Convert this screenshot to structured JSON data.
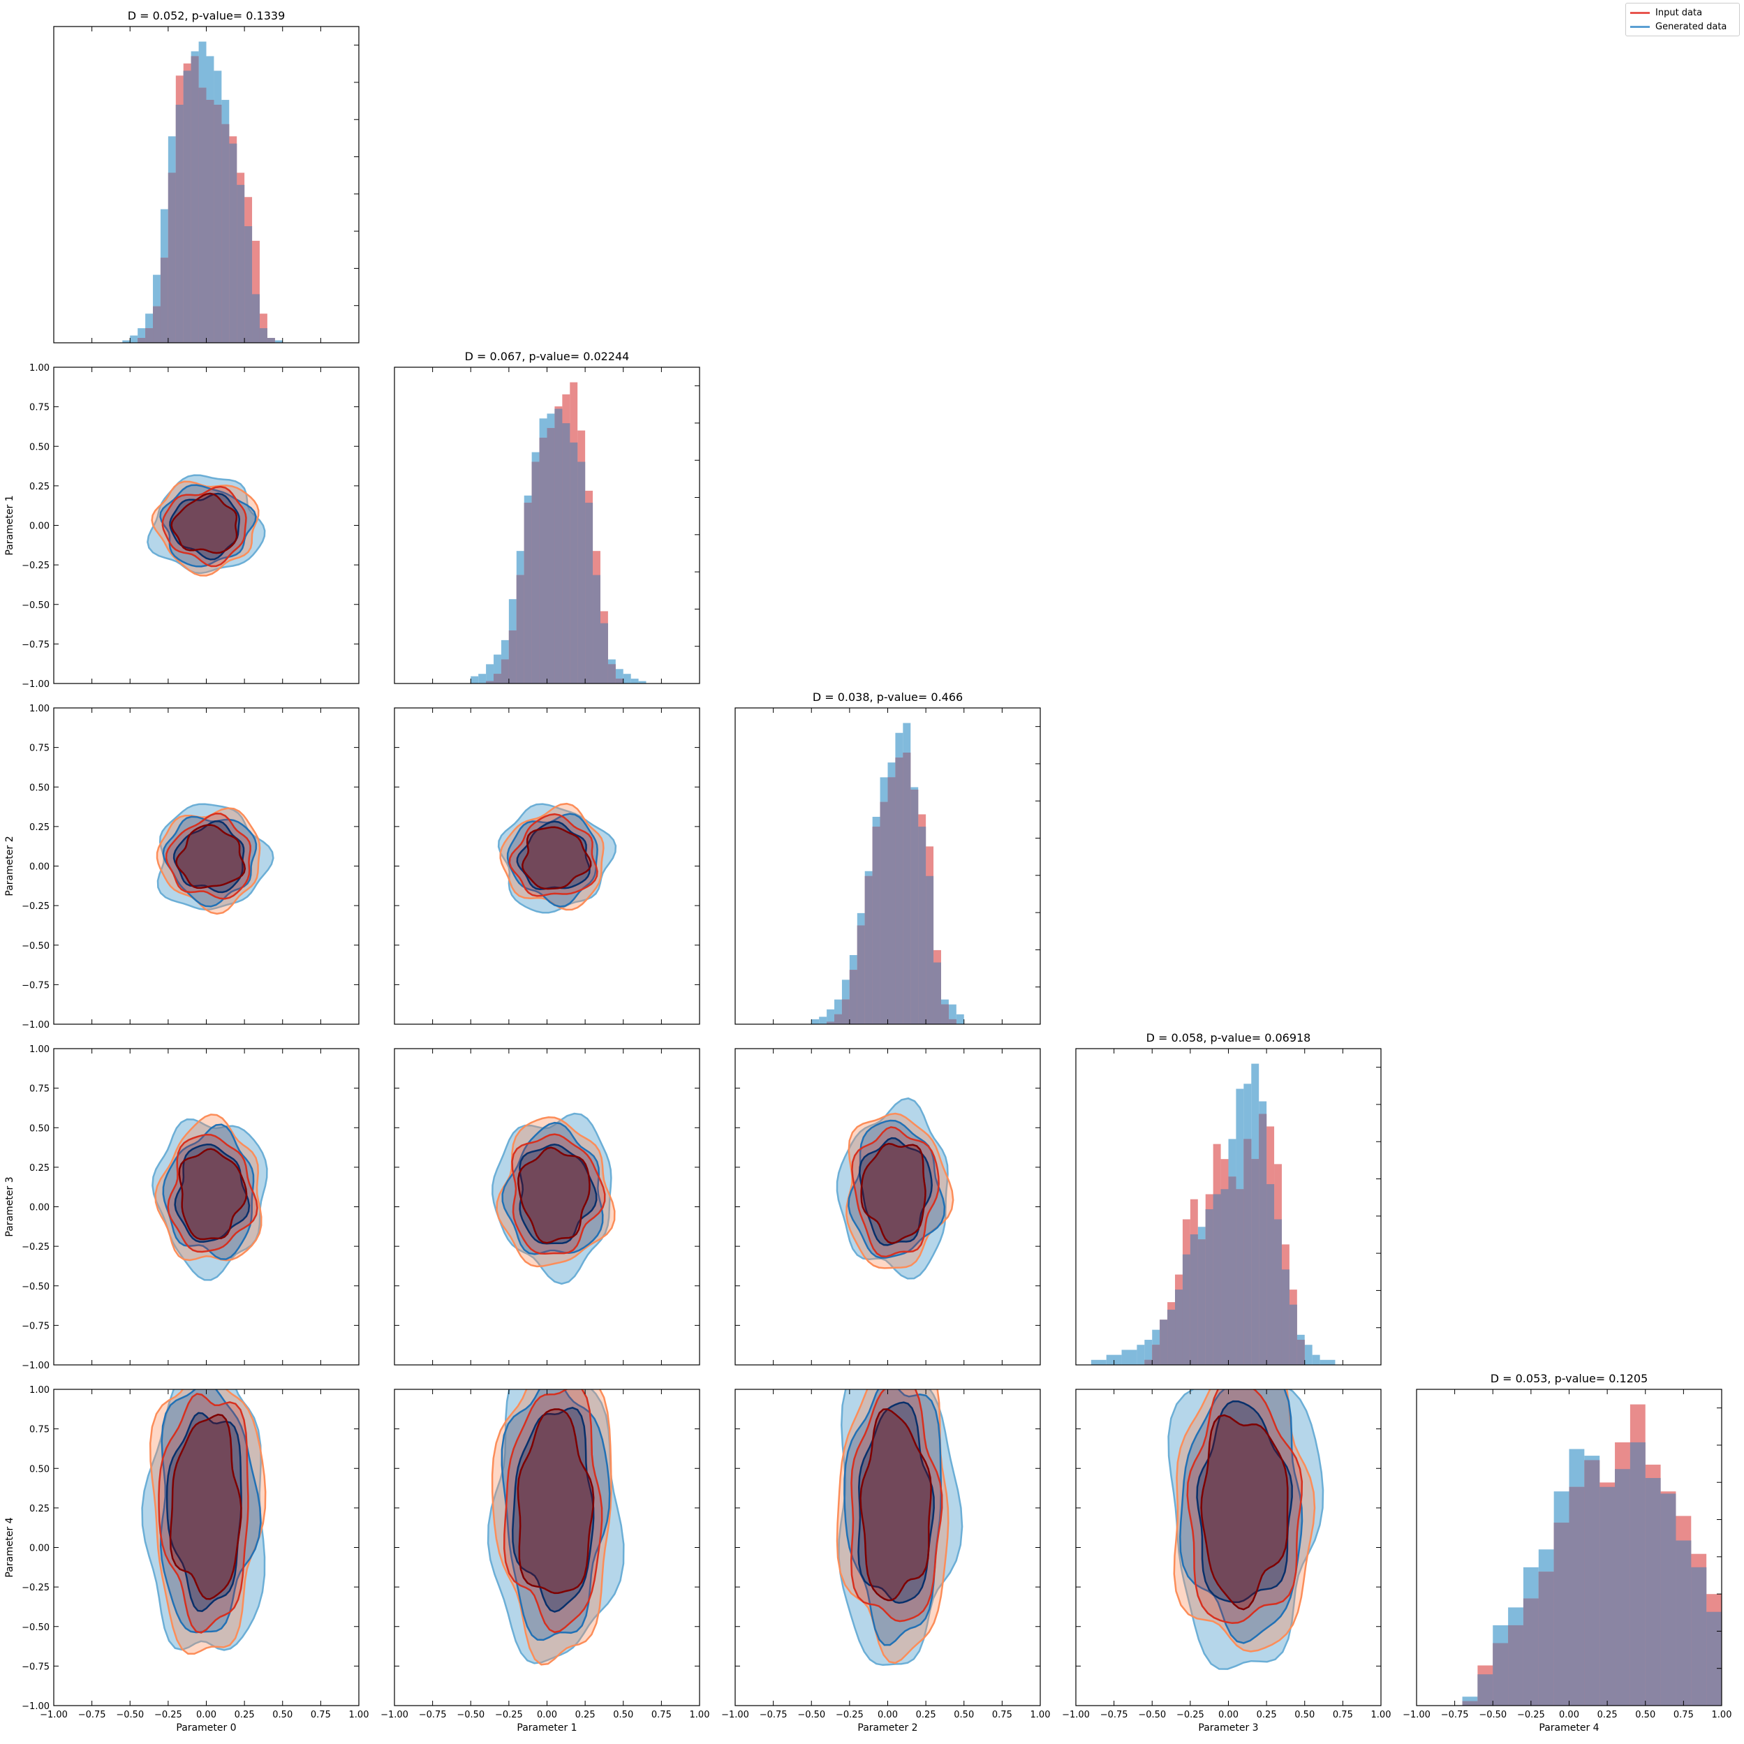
{
  "chart_data": {
    "type": "corner",
    "parameters": [
      "Parameter 0",
      "Parameter 1",
      "Parameter 2",
      "Parameter 3",
      "Parameter 4"
    ],
    "xlim": [
      -1.0,
      1.0
    ],
    "ylim": [
      -1.0,
      1.0
    ],
    "tick_labels": [
      "−1.00",
      "−0.75",
      "−0.50",
      "−0.25",
      "0.00",
      "0.25",
      "0.50",
      "0.75",
      "1.00"
    ],
    "legend": {
      "placement": "top-right",
      "entries": [
        {
          "label": "Input data",
          "color": "#e8554e"
        },
        {
          "label": "Generated data",
          "color": "#5b9fd3"
        }
      ]
    },
    "colors": {
      "input_hist": "#e06666",
      "generated_hist": "#6baed6",
      "overlap": "#8a85a3",
      "input_contour": [
        "#fc8d59",
        "#d7301f",
        "#7f0000"
      ],
      "generated_contour": [
        "#6baed6",
        "#2171b5",
        "#08306b"
      ]
    },
    "diagonal": [
      {
        "param": 0,
        "title": "D = 0.052, p-value= 0.1339",
        "bin_edges": [
          -0.55,
          -0.5,
          -0.45,
          -0.4,
          -0.35,
          -0.3,
          -0.25,
          -0.2,
          -0.15,
          -0.1,
          -0.05,
          0.0,
          0.05,
          0.1,
          0.15,
          0.2,
          0.25,
          0.3,
          0.35,
          0.4,
          0.45,
          0.5
        ],
        "input_counts": [
          0,
          0,
          2,
          6,
          15,
          35,
          70,
          110,
          115,
          118,
          105,
          100,
          98,
          90,
          85,
          70,
          60,
          42,
          12,
          2,
          0
        ],
        "generated_counts": [
          1,
          3,
          6,
          12,
          28,
          55,
          85,
          98,
          112,
          120,
          124,
          118,
          112,
          100,
          82,
          65,
          48,
          20,
          6,
          2,
          1
        ]
      },
      {
        "param": 1,
        "title": "D = 0.067, p-value= 0.02244",
        "bin_edges": [
          -0.5,
          -0.45,
          -0.4,
          -0.35,
          -0.3,
          -0.25,
          -0.2,
          -0.15,
          -0.1,
          -0.05,
          0.0,
          0.05,
          0.1,
          0.15,
          0.2,
          0.25,
          0.3,
          0.35,
          0.4,
          0.45,
          0.5,
          0.55,
          0.6,
          0.65
        ],
        "input_counts": [
          0,
          0,
          1,
          4,
          10,
          22,
          45,
          75,
          92,
          102,
          106,
          115,
          120,
          125,
          105,
          80,
          55,
          30,
          8,
          2,
          0,
          0,
          0
        ],
        "generated_counts": [
          3,
          4,
          8,
          12,
          18,
          35,
          55,
          78,
          96,
          110,
          112,
          114,
          108,
          100,
          92,
          75,
          45,
          25,
          10,
          6,
          4,
          2,
          1
        ]
      },
      {
        "param": 2,
        "title": "D = 0.038, p-value= 0.466",
        "bin_edges": [
          -0.5,
          -0.45,
          -0.4,
          -0.35,
          -0.3,
          -0.25,
          -0.2,
          -0.15,
          -0.1,
          -0.05,
          0.0,
          0.05,
          0.1,
          0.15,
          0.2,
          0.25,
          0.3,
          0.35,
          0.4,
          0.45,
          0.5
        ],
        "input_counts": [
          0,
          0,
          1,
          4,
          10,
          22,
          40,
          60,
          80,
          90,
          100,
          108,
          110,
          95,
          85,
          72,
          30,
          8,
          2,
          0
        ],
        "generated_counts": [
          2,
          3,
          6,
          10,
          18,
          28,
          45,
          62,
          84,
          100,
          106,
          118,
          122,
          96,
          80,
          60,
          25,
          10,
          8,
          4
        ]
      },
      {
        "param": 3,
        "title": "D = 0.058, p-value= 0.06918",
        "bin_edges": [
          -0.9,
          -0.8,
          -0.7,
          -0.6,
          -0.55,
          -0.5,
          -0.45,
          -0.4,
          -0.35,
          -0.3,
          -0.25,
          -0.2,
          -0.15,
          -0.1,
          -0.05,
          0.0,
          0.05,
          0.1,
          0.15,
          0.2,
          0.25,
          0.3,
          0.35,
          0.4,
          0.45,
          0.5,
          0.55,
          0.6,
          0.7
        ],
        "input_counts": [
          0,
          0,
          0,
          0,
          2,
          8,
          18,
          25,
          36,
          58,
          66,
          50,
          68,
          88,
          82,
          75,
          70,
          90,
          82,
          100,
          95,
          80,
          48,
          30,
          10,
          0,
          0,
          0
        ],
        "generated_counts": [
          2,
          4,
          6,
          8,
          10,
          14,
          18,
          22,
          30,
          44,
          52,
          55,
          62,
          68,
          70,
          90,
          110,
          112,
          120,
          105,
          72,
          58,
          38,
          24,
          12,
          8,
          4,
          2
        ]
      },
      {
        "param": 4,
        "title": "D = 0.053, p-value= 0.1205",
        "bin_edges": [
          -0.7,
          -0.6,
          -0.5,
          -0.4,
          -0.3,
          -0.2,
          -0.1,
          0.0,
          0.1,
          0.2,
          0.3,
          0.4,
          0.5,
          0.6,
          0.7,
          0.8,
          0.9,
          1.0
        ],
        "input_counts": [
          2,
          18,
          28,
          36,
          48,
          60,
          82,
          98,
          110,
          100,
          118,
          135,
          108,
          96,
          85,
          68,
          50
        ],
        "generated_counts": [
          4,
          14,
          36,
          44,
          62,
          70,
          96,
          115,
          112,
          98,
          106,
          118,
          102,
          95,
          74,
          62,
          42
        ]
      }
    ],
    "off_diagonal": [
      {
        "x_param": 0,
        "y_param": 1,
        "center": [
          0.0,
          0.0
        ],
        "spread": [
          0.26,
          0.22
        ]
      },
      {
        "x_param": 0,
        "y_param": 2,
        "center": [
          0.03,
          0.05
        ],
        "spread": [
          0.26,
          0.24
        ]
      },
      {
        "x_param": 1,
        "y_param": 2,
        "center": [
          0.05,
          0.05
        ],
        "spread": [
          0.26,
          0.24
        ]
      },
      {
        "x_param": 0,
        "y_param": 3,
        "center": [
          0.03,
          0.08
        ],
        "spread": [
          0.26,
          0.35
        ]
      },
      {
        "x_param": 1,
        "y_param": 3,
        "center": [
          0.05,
          0.08
        ],
        "spread": [
          0.28,
          0.36
        ]
      },
      {
        "x_param": 2,
        "y_param": 3,
        "center": [
          0.05,
          0.1
        ],
        "spread": [
          0.26,
          0.38
        ]
      },
      {
        "x_param": 0,
        "y_param": 4,
        "center": [
          0.0,
          0.25
        ],
        "spread": [
          0.28,
          0.7
        ]
      },
      {
        "x_param": 1,
        "y_param": 4,
        "center": [
          0.05,
          0.25
        ],
        "spread": [
          0.3,
          0.72
        ]
      },
      {
        "x_param": 2,
        "y_param": 4,
        "center": [
          0.05,
          0.25
        ],
        "spread": [
          0.28,
          0.72
        ]
      },
      {
        "x_param": 3,
        "y_param": 4,
        "center": [
          0.1,
          0.25
        ],
        "spread": [
          0.35,
          0.72
        ]
      }
    ]
  }
}
